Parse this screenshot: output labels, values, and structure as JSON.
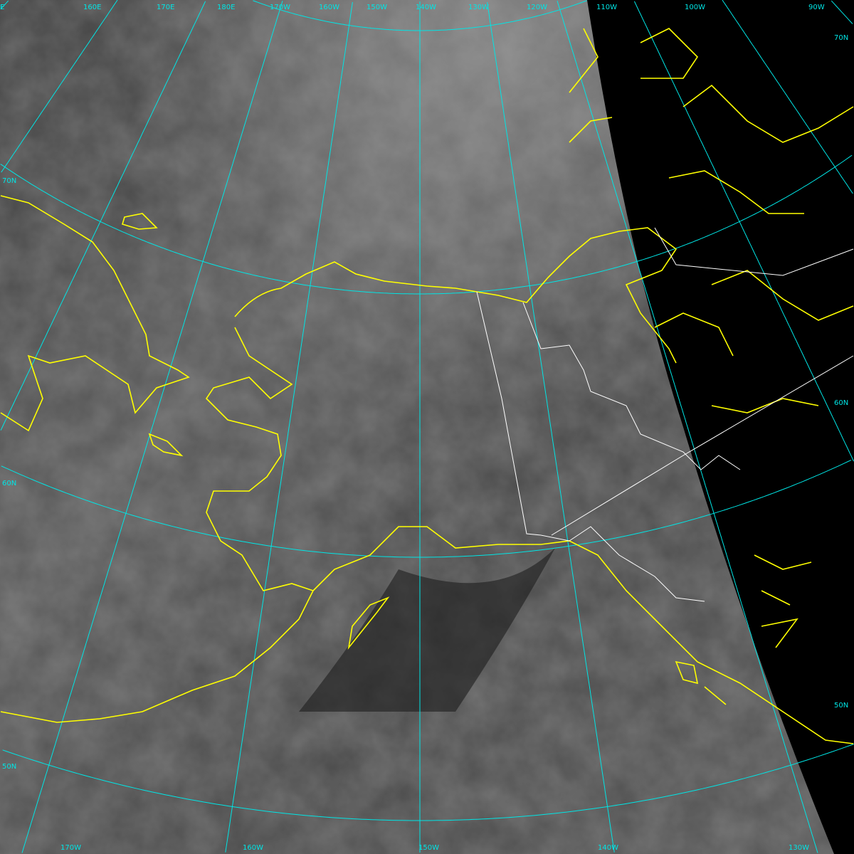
{
  "colors": {
    "graticule": "#00e5e5",
    "coastline": "#ffff00",
    "border": "#ffffff",
    "space": "#000000"
  },
  "top_labels": [
    "E",
    "160E",
    "170E",
    "180E",
    "170W",
    "160W",
    "150W",
    "140W",
    "130W",
    "120W",
    "110W",
    "100W",
    "90W"
  ],
  "bottom_labels": [
    "170W",
    "160W",
    "150W",
    "140W",
    "130W"
  ],
  "left_labels": [
    "70N",
    "60N",
    "50N"
  ],
  "right_labels": [
    "70N",
    "60N",
    "50N"
  ]
}
